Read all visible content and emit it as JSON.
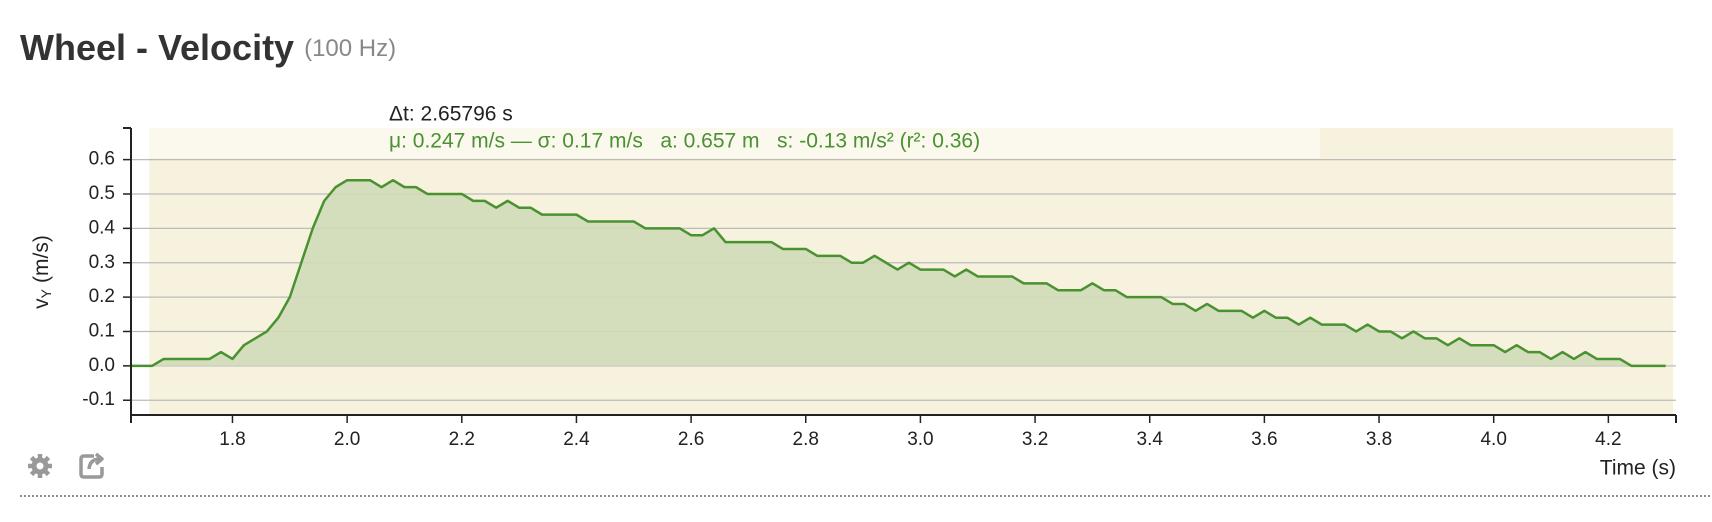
{
  "chart_data": {
    "type": "area",
    "title": "Wheel - Velocity",
    "subtitle": "(100 Hz)",
    "delta_label": "Δt: 2.65796 s",
    "stats_label": "μ: 0.247 m/s — σ: 0.17 m/s   a: 0.657 m   s: -0.13 m/s² (r²: 0.36)",
    "y_label": {
      "symbol": "v",
      "subscript": "Y",
      "unit": "(m/s)"
    },
    "x_label": "Time (s)",
    "color": "#4a9132",
    "fill": "#cfdcb8",
    "background": "#f7f2dd",
    "banner": "#fbf9ee",
    "selection": [
      1.655,
      4.313
    ],
    "xlim": [
      1.623,
      4.318
    ],
    "ylim": [
      -0.143,
      0.692
    ],
    "xticks": [
      1.8,
      {
        "value": 2,
        "label": "2.0"
      },
      2.2,
      2.4,
      2.6,
      2.8,
      {
        "value": 3,
        "label": "3.0"
      },
      3.2,
      3.4,
      3.6,
      3.8,
      {
        "value": 4,
        "label": "4.0"
      },
      4.2
    ],
    "yticks": [
      -0.1,
      {
        "value": 0,
        "label": "0.0"
      },
      0.1,
      0.2,
      0.3,
      0.4,
      0.5,
      0.6
    ],
    "grid": true,
    "x": [
      1.62,
      1.64,
      1.66,
      1.68,
      1.7,
      1.72,
      1.74,
      1.76,
      1.78,
      1.8,
      1.82,
      1.84,
      1.86,
      1.88,
      1.9,
      1.92,
      1.94,
      1.96,
      1.98,
      2.0,
      2.02,
      2.04,
      2.06,
      2.08,
      2.1,
      2.12,
      2.14,
      2.16,
      2.18,
      2.2,
      2.22,
      2.24,
      2.26,
      2.28,
      2.3,
      2.32,
      2.34,
      2.36,
      2.38,
      2.4,
      2.42,
      2.44,
      2.46,
      2.48,
      2.5,
      2.52,
      2.54,
      2.56,
      2.58,
      2.6,
      2.62,
      2.64,
      2.66,
      2.68,
      2.7,
      2.72,
      2.74,
      2.76,
      2.78,
      2.8,
      2.82,
      2.84,
      2.86,
      2.88,
      2.9,
      2.92,
      2.94,
      2.96,
      2.98,
      3.0,
      3.02,
      3.04,
      3.06,
      3.08,
      3.1,
      3.12,
      3.14,
      3.16,
      3.18,
      3.2,
      3.22,
      3.24,
      3.26,
      3.28,
      3.3,
      3.32,
      3.34,
      3.36,
      3.38,
      3.4,
      3.42,
      3.44,
      3.46,
      3.48,
      3.5,
      3.52,
      3.54,
      3.56,
      3.58,
      3.6,
      3.62,
      3.64,
      3.66,
      3.68,
      3.7,
      3.72,
      3.74,
      3.76,
      3.78,
      3.8,
      3.82,
      3.84,
      3.86,
      3.88,
      3.9,
      3.92,
      3.94,
      3.96,
      3.98,
      4.0,
      4.02,
      4.04,
      4.06,
      4.08,
      4.1,
      4.12,
      4.14,
      4.16,
      4.18,
      4.2,
      4.22,
      4.24,
      4.26,
      4.28,
      4.3
    ],
    "values": [
      0,
      0,
      0,
      0.02,
      0.02,
      0.02,
      0.02,
      0.02,
      0.04,
      0.02,
      0.06,
      0.08,
      0.1,
      0.14,
      0.2,
      0.3,
      0.4,
      0.48,
      0.52,
      0.54,
      0.54,
      0.54,
      0.52,
      0.54,
      0.52,
      0.52,
      0.5,
      0.5,
      0.5,
      0.5,
      0.48,
      0.48,
      0.46,
      0.48,
      0.46,
      0.46,
      0.44,
      0.44,
      0.44,
      0.44,
      0.42,
      0.42,
      0.42,
      0.42,
      0.42,
      0.4,
      0.4,
      0.4,
      0.4,
      0.38,
      0.38,
      0.4,
      0.36,
      0.36,
      0.36,
      0.36,
      0.36,
      0.34,
      0.34,
      0.34,
      0.32,
      0.32,
      0.32,
      0.3,
      0.3,
      0.32,
      0.3,
      0.28,
      0.3,
      0.28,
      0.28,
      0.28,
      0.26,
      0.28,
      0.26,
      0.26,
      0.26,
      0.26,
      0.24,
      0.24,
      0.24,
      0.22,
      0.22,
      0.22,
      0.24,
      0.22,
      0.22,
      0.2,
      0.2,
      0.2,
      0.2,
      0.18,
      0.18,
      0.16,
      0.18,
      0.16,
      0.16,
      0.16,
      0.14,
      0.16,
      0.14,
      0.14,
      0.12,
      0.14,
      0.12,
      0.12,
      0.12,
      0.1,
      0.12,
      0.1,
      0.1,
      0.08,
      0.1,
      0.08,
      0.08,
      0.06,
      0.08,
      0.06,
      0.06,
      0.06,
      0.04,
      0.06,
      0.04,
      0.04,
      0.02,
      0.04,
      0.02,
      0.04,
      0.02,
      0.02,
      0.02,
      0,
      0,
      0,
      0
    ]
  }
}
